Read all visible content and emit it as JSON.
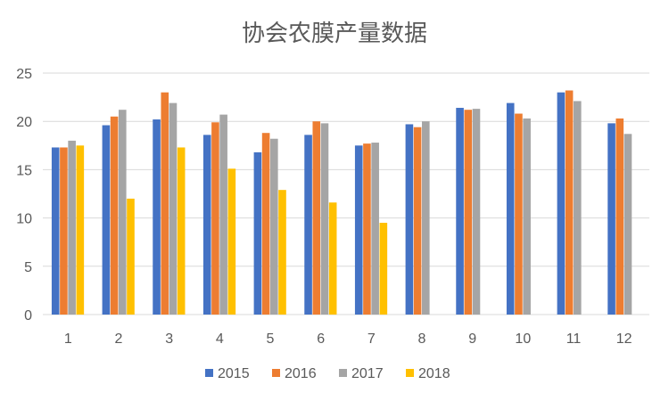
{
  "chart_data": {
    "type": "bar",
    "title": "协会农膜产量数据",
    "categories": [
      "1",
      "2",
      "3",
      "4",
      "5",
      "6",
      "7",
      "8",
      "9",
      "10",
      "11",
      "12"
    ],
    "ylim": [
      0,
      25
    ],
    "yticks": [
      "0",
      "5",
      "10",
      "15",
      "20",
      "25"
    ],
    "grid": true,
    "legend_position": "bottom",
    "series": [
      {
        "name": "2015",
        "color": "#4472C4",
        "values": [
          17.3,
          19.6,
          20.2,
          18.6,
          16.8,
          18.6,
          17.5,
          19.7,
          21.4,
          21.9,
          23.0,
          19.8
        ]
      },
      {
        "name": "2016",
        "color": "#ED7D31",
        "values": [
          17.3,
          20.5,
          23.0,
          19.9,
          18.8,
          20.0,
          17.7,
          19.4,
          21.2,
          20.8,
          23.2,
          20.3
        ]
      },
      {
        "name": "2017",
        "color": "#A5A5A5",
        "values": [
          18.0,
          21.2,
          21.9,
          20.7,
          18.2,
          19.8,
          17.8,
          20.0,
          21.3,
          20.3,
          22.1,
          18.7
        ]
      },
      {
        "name": "2018",
        "color": "#FFC000",
        "values": [
          17.5,
          12.0,
          17.3,
          15.1,
          12.9,
          11.6,
          9.5,
          null,
          null,
          null,
          null,
          null
        ]
      }
    ]
  }
}
